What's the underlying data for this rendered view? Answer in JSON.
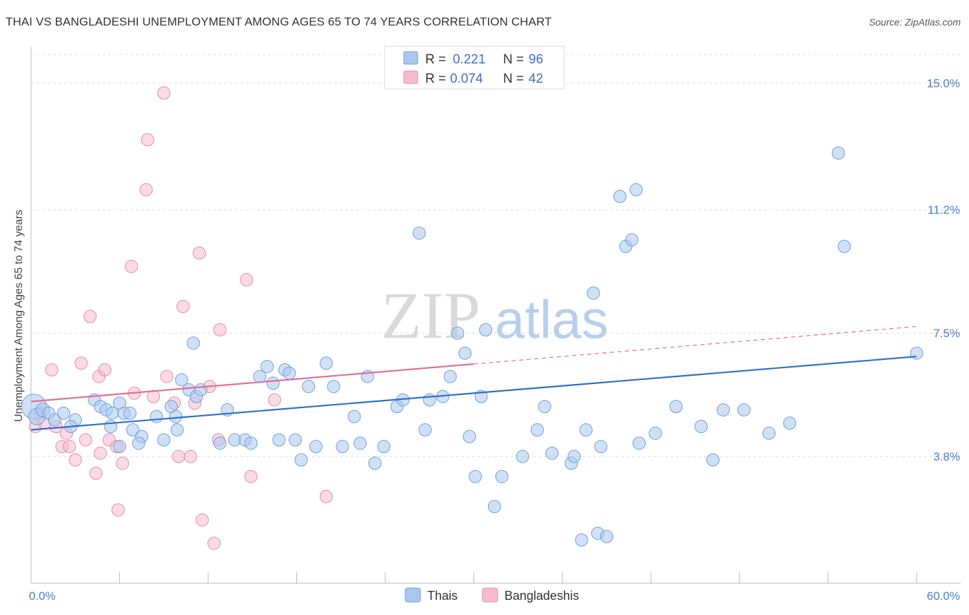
{
  "header": {
    "title": "THAI VS BANGLADESHI UNEMPLOYMENT AMONG AGES 65 TO 74 YEARS CORRELATION CHART",
    "source": "Source: ZipAtlas.com"
  },
  "watermark": {
    "zip": "ZIP",
    "atlas": "atlas"
  },
  "colors": {
    "thai": "#a9c8ef",
    "thai_stroke": "#6e9fd8",
    "thai_line": "#2d6fcc",
    "bangladeshi": "#f5bccd",
    "bangladeshi_stroke": "#e88aa8",
    "bangladeshi_line": "#e06c95",
    "grid": "#dcdcdc",
    "tick_label": "#4a7bd0"
  },
  "legend": {
    "rows": [
      {
        "r_label": "R = ",
        "r_value": "0.221",
        "n_label": "N = ",
        "n_value": "96"
      },
      {
        "r_label": "R = ",
        "r_value": "0.074",
        "n_label": "N = ",
        "n_value": "42"
      }
    ]
  },
  "chart_data": {
    "type": "scatter",
    "title": "THAI VS BANGLADESHI UNEMPLOYMENT AMONG AGES 65 TO 74 YEARS CORRELATION CHART",
    "xlabel": "",
    "ylabel": "Unemployment Among Ages 65 to 74 years",
    "xlim": [
      0,
      60
    ],
    "ylim": [
      0,
      16
    ],
    "x_tick_labels": [
      "0.0%",
      "60.0%"
    ],
    "y_ticks": [
      3.8,
      7.5,
      11.2,
      15.0
    ],
    "y_tick_labels": [
      "3.8%",
      "7.5%",
      "11.2%",
      "15.0%"
    ],
    "grid": true,
    "legend_position": "top-center",
    "series": [
      {
        "name": "Thais",
        "color": "#a9c8ef",
        "trend": {
          "x": [
            0,
            60
          ],
          "y": [
            4.6,
            6.8
          ],
          "dashed_from": null
        },
        "points": [
          [
            0.2,
            5.3,
            18
          ],
          [
            0.4,
            5.0,
            12
          ],
          [
            0.8,
            5.2,
            10
          ],
          [
            1.2,
            5.1,
            9
          ],
          [
            1.6,
            4.9,
            9
          ],
          [
            2.2,
            5.1,
            9
          ],
          [
            3.0,
            4.9,
            9
          ],
          [
            2.7,
            4.7,
            9
          ],
          [
            4.3,
            5.5,
            9
          ],
          [
            4.7,
            5.3,
            9
          ],
          [
            5.1,
            5.2,
            9
          ],
          [
            5.5,
            5.1,
            9
          ],
          [
            6.0,
            5.4,
            9
          ],
          [
            6.3,
            5.1,
            9
          ],
          [
            5.4,
            4.7,
            9
          ],
          [
            6.9,
            4.6,
            9
          ],
          [
            7.5,
            4.4,
            9
          ],
          [
            6.0,
            4.1,
            9
          ],
          [
            7.3,
            4.2,
            9
          ],
          [
            6.7,
            5.1,
            9
          ],
          [
            8.5,
            5.0,
            9
          ],
          [
            9.0,
            4.3,
            9
          ],
          [
            9.5,
            5.3,
            9
          ],
          [
            9.8,
            5.0,
            9
          ],
          [
            9.9,
            4.6,
            9
          ],
          [
            10.2,
            6.1,
            9
          ],
          [
            10.7,
            5.8,
            9
          ],
          [
            11.2,
            5.6,
            9
          ],
          [
            11.5,
            5.8,
            9
          ],
          [
            11.0,
            7.2,
            9
          ],
          [
            12.8,
            4.2,
            9
          ],
          [
            13.3,
            5.2,
            9
          ],
          [
            13.8,
            4.3,
            9
          ],
          [
            14.5,
            4.3,
            9
          ],
          [
            14.9,
            4.2,
            9
          ],
          [
            15.5,
            6.2,
            9
          ],
          [
            16.0,
            6.5,
            9
          ],
          [
            16.4,
            6.0,
            9
          ],
          [
            16.8,
            4.3,
            9
          ],
          [
            17.2,
            6.4,
            9
          ],
          [
            17.5,
            6.3,
            9
          ],
          [
            17.9,
            4.3,
            9
          ],
          [
            18.3,
            3.7,
            9
          ],
          [
            18.8,
            5.9,
            9
          ],
          [
            19.3,
            4.1,
            9
          ],
          [
            20.0,
            6.6,
            9
          ],
          [
            20.5,
            5.9,
            9
          ],
          [
            21.1,
            4.1,
            9
          ],
          [
            21.9,
            5.0,
            9
          ],
          [
            22.3,
            4.2,
            9
          ],
          [
            22.8,
            6.2,
            9
          ],
          [
            23.3,
            3.6,
            9
          ],
          [
            23.9,
            4.1,
            9
          ],
          [
            24.8,
            5.3,
            9
          ],
          [
            25.2,
            5.5,
            9
          ],
          [
            26.3,
            10.5,
            9
          ],
          [
            26.7,
            4.6,
            9
          ],
          [
            27.0,
            5.5,
            9
          ],
          [
            27.9,
            5.6,
            9
          ],
          [
            28.4,
            6.2,
            9
          ],
          [
            28.9,
            7.5,
            9
          ],
          [
            29.4,
            6.9,
            9
          ],
          [
            29.7,
            4.4,
            9
          ],
          [
            30.5,
            5.6,
            9
          ],
          [
            30.1,
            3.2,
            9
          ],
          [
            30.8,
            7.6,
            9
          ],
          [
            31.4,
            2.3,
            9
          ],
          [
            31.9,
            3.2,
            9
          ],
          [
            33.3,
            3.8,
            9
          ],
          [
            34.3,
            4.6,
            9
          ],
          [
            34.8,
            5.3,
            9
          ],
          [
            35.3,
            3.9,
            9
          ],
          [
            36.6,
            3.6,
            9
          ],
          [
            36.8,
            3.8,
            9
          ],
          [
            37.3,
            1.3,
            9
          ],
          [
            37.6,
            4.6,
            9
          ],
          [
            38.4,
            1.5,
            9
          ],
          [
            39.0,
            1.4,
            9
          ],
          [
            38.1,
            8.7,
            9
          ],
          [
            38.6,
            4.1,
            9
          ],
          [
            39.9,
            11.6,
            9
          ],
          [
            40.3,
            10.1,
            9
          ],
          [
            40.7,
            10.3,
            9
          ],
          [
            41.0,
            11.8,
            9
          ],
          [
            41.2,
            4.2,
            9
          ],
          [
            42.3,
            4.5,
            9
          ],
          [
            43.7,
            5.3,
            9
          ],
          [
            45.4,
            4.7,
            9
          ],
          [
            46.2,
            3.7,
            9
          ],
          [
            46.9,
            5.2,
            9
          ],
          [
            48.3,
            5.2,
            9
          ],
          [
            50.0,
            4.5,
            9
          ],
          [
            51.4,
            4.8,
            9
          ],
          [
            54.7,
            12.9,
            9
          ],
          [
            55.1,
            10.1,
            9
          ],
          [
            60.0,
            6.9,
            9
          ]
        ]
      },
      {
        "name": "Bangladeshis",
        "color": "#f5bccd",
        "trend": {
          "x": [
            0,
            60
          ],
          "y": [
            5.45,
            7.7
          ],
          "dashed_from": 30
        },
        "points": [
          [
            0.3,
            4.7,
            9
          ],
          [
            0.6,
            5.1,
            9
          ],
          [
            0.9,
            4.8,
            9
          ],
          [
            1.4,
            6.4,
            9
          ],
          [
            1.7,
            4.7,
            9
          ],
          [
            2.1,
            4.1,
            9
          ],
          [
            2.4,
            4.5,
            9
          ],
          [
            2.6,
            4.1,
            9
          ],
          [
            3.0,
            3.7,
            9
          ],
          [
            3.4,
            6.6,
            9
          ],
          [
            3.7,
            4.3,
            9
          ],
          [
            4.0,
            8.0,
            9
          ],
          [
            4.4,
            3.3,
            9
          ],
          [
            4.6,
            6.2,
            9
          ],
          [
            4.7,
            3.9,
            9
          ],
          [
            5.0,
            6.4,
            9
          ],
          [
            5.3,
            4.3,
            9
          ],
          [
            5.8,
            4.1,
            9
          ],
          [
            5.9,
            2.2,
            9
          ],
          [
            6.2,
            3.6,
            9
          ],
          [
            6.8,
            9.5,
            9
          ],
          [
            7.0,
            5.7,
            9
          ],
          [
            7.8,
            11.8,
            9
          ],
          [
            7.9,
            13.3,
            9
          ],
          [
            8.3,
            5.6,
            9
          ],
          [
            9.0,
            14.7,
            9
          ],
          [
            9.2,
            6.2,
            9
          ],
          [
            9.7,
            5.4,
            9
          ],
          [
            10.0,
            3.8,
            9
          ],
          [
            10.3,
            8.3,
            9
          ],
          [
            10.8,
            3.8,
            9
          ],
          [
            11.1,
            5.4,
            9
          ],
          [
            11.4,
            9.9,
            9
          ],
          [
            11.6,
            1.9,
            9
          ],
          [
            12.1,
            5.9,
            9
          ],
          [
            12.4,
            1.2,
            9
          ],
          [
            12.7,
            4.3,
            9
          ],
          [
            12.8,
            7.6,
            9
          ],
          [
            14.6,
            9.1,
            9
          ],
          [
            14.9,
            3.2,
            9
          ],
          [
            16.5,
            5.5,
            9
          ],
          [
            20.0,
            2.6,
            9
          ]
        ]
      }
    ]
  },
  "bottom_legend": [
    "Thais",
    "Bangladeshis"
  ]
}
